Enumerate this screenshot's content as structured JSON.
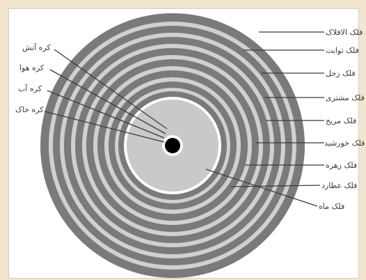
{
  "colors": {
    "page_background": "#f2e6cf",
    "panel": "#ffffff",
    "dark_ring": "#7a7a7a",
    "light_ring": "#d0d0d0",
    "inner_sphere": "#c9c9c9",
    "center": "#000000",
    "leader": "#3a3a3a"
  },
  "spheres_left": [
    {
      "label": "کره آتش"
    },
    {
      "label": "کره هوا"
    },
    {
      "label": "کره آب"
    },
    {
      "label": "کره خاک"
    }
  ],
  "celestial_right": [
    {
      "label": "فلک الافلاک"
    },
    {
      "label": "فلک ثوابت"
    },
    {
      "label": "فلک زحل"
    },
    {
      "label": "فلک مشتری"
    },
    {
      "label": "فلک مریخ"
    },
    {
      "label": "فلک خورشید"
    },
    {
      "label": "فلک زهره"
    },
    {
      "label": "فلک عطارد"
    },
    {
      "label": "فلک ماه"
    }
  ]
}
